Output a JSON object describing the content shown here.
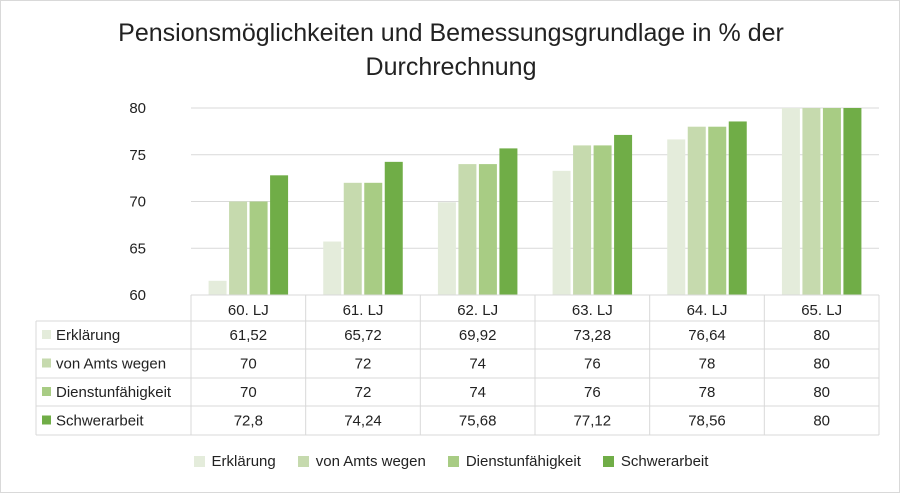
{
  "chart_data": {
    "type": "bar",
    "title": "Pensionsmöglichkeiten und Bemessungsgrundlage in % der Durchrechnung",
    "title_lines": [
      "Pensionsmöglichkeiten und Bemessungsgrundlage in % der",
      "Durchrechnung"
    ],
    "categories": [
      "60. LJ",
      "61. LJ",
      "62. LJ",
      "63. LJ",
      "64. LJ",
      "65. LJ"
    ],
    "ylim": [
      60,
      80
    ],
    "yticks": [
      60,
      65,
      70,
      75,
      80
    ],
    "grid": true,
    "legend": "bottom",
    "data_table": true,
    "series": [
      {
        "name": "Erklärung",
        "color": "#e4ecdb",
        "values": [
          61.52,
          65.72,
          69.92,
          73.28,
          76.64,
          80
        ],
        "labels": [
          "61,52",
          "65,72",
          "69,92",
          "73,28",
          "76,64",
          "80"
        ]
      },
      {
        "name": "von Amts wegen",
        "color": "#c6daae",
        "values": [
          70,
          72,
          74,
          76,
          78,
          80
        ],
        "labels": [
          "70",
          "72",
          "74",
          "76",
          "78",
          "80"
        ]
      },
      {
        "name": "Dienstunfähigkeit",
        "color": "#a8cc84",
        "values": [
          70,
          72,
          74,
          76,
          78,
          80
        ],
        "labels": [
          "70",
          "72",
          "74",
          "76",
          "78",
          "80"
        ]
      },
      {
        "name": "Schwerarbeit",
        "color": "#70ad47",
        "values": [
          72.8,
          74.24,
          75.68,
          77.12,
          78.56,
          80
        ],
        "labels": [
          "72,8",
          "74,24",
          "75,68",
          "77,12",
          "78,56",
          "80"
        ]
      }
    ]
  }
}
